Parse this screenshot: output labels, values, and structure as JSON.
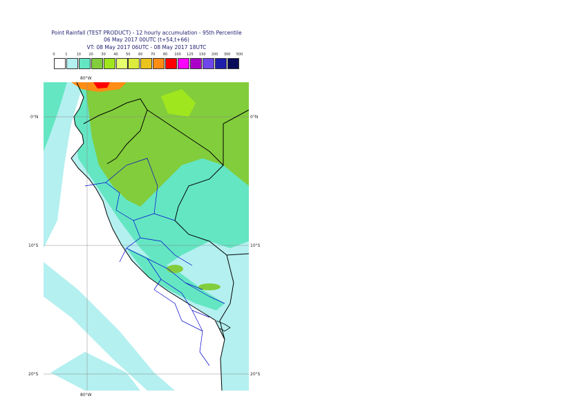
{
  "header": {
    "title_line1": "Point Rainfall (TEST PRODUCT) - 12 hourly accumulation - 95th Percentile",
    "title_line2": "06 May 2017 00UTC (t+54,t+66)",
    "title_line3": "VT: 08 May 2017 06UTC - 08 May 2017 18UTC"
  },
  "legend": {
    "thresholds": [
      "0",
      "1",
      "10",
      "20",
      "30",
      "40",
      "50",
      "60",
      "70",
      "80",
      "100",
      "125",
      "150",
      "200",
      "300",
      "500"
    ],
    "colors": [
      "#ffffff",
      "#b4f0f0",
      "#64e6c3",
      "#82cd3c",
      "#a0e61e",
      "#e6ff6e",
      "#dceb3c",
      "#ebc31e",
      "#ff8c14",
      "#ff0000",
      "#ff00ff",
      "#aa00c8",
      "#6e46eb",
      "#1e1eaa",
      "#0a0a5a"
    ]
  },
  "axes": {
    "lon_top": "80°W",
    "lon_bottom": "80°W",
    "lat_labels": [
      "0°N",
      "10°S",
      "20°S"
    ]
  },
  "map": {
    "ocean_color": "#ffffff",
    "layers": [
      "light-rain-zone",
      "moderate-rain-zone",
      "heavy-rain-zone",
      "intense-rain-zone"
    ],
    "features": [
      "country-borders",
      "department-borders",
      "graticule"
    ]
  }
}
